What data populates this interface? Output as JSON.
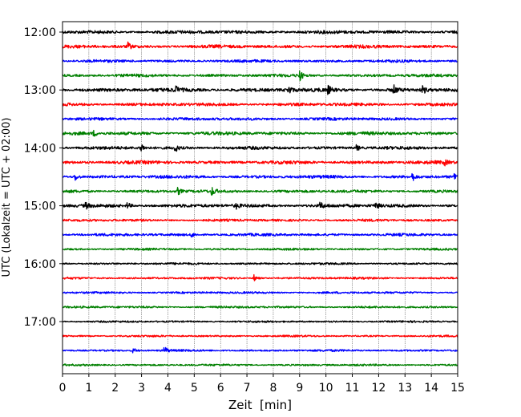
{
  "chart_data": {
    "type": "line",
    "subtype": "helicorder",
    "xlabel": "Zeit  [min]",
    "ylabel": "UTC (Lokalzeit = UTC + 02:00)",
    "xlim": [
      0,
      15
    ],
    "x_ticks": [
      0,
      1,
      2,
      3,
      4,
      5,
      6,
      7,
      8,
      9,
      10,
      11,
      12,
      13,
      14,
      15
    ],
    "y_tick_labels": [
      "12:00",
      "13:00",
      "14:00",
      "15:00",
      "16:00",
      "17:00"
    ],
    "x_grid": true,
    "trace_interval_min": 15,
    "traces_start": "12:00",
    "trace_count": 24,
    "colors_cycle": [
      "#000000",
      "#ff0000",
      "#0000ff",
      "#008000"
    ],
    "noise_amplitude_per_trace": [
      1.6,
      1.6,
      1.3,
      1.4,
      1.8,
      1.5,
      1.4,
      1.6,
      1.5,
      1.6,
      1.5,
      1.4,
      1.6,
      1.2,
      1.3,
      1.0,
      1.0,
      1.0,
      1.0,
      1.0,
      0.9,
      0.9,
      1.0,
      0.9
    ],
    "events": [
      {
        "trace": 1,
        "time": 2.5,
        "amp": 4
      },
      {
        "trace": 3,
        "time": 9.0,
        "amp": 7
      },
      {
        "trace": 4,
        "time": 4.3,
        "amp": 4
      },
      {
        "trace": 4,
        "time": 8.6,
        "amp": 5
      },
      {
        "trace": 4,
        "time": 10.1,
        "amp": 4
      },
      {
        "trace": 4,
        "time": 12.6,
        "amp": 5
      },
      {
        "trace": 4,
        "time": 13.7,
        "amp": 4
      },
      {
        "trace": 7,
        "time": 1.2,
        "amp": 3
      },
      {
        "trace": 8,
        "time": 3.0,
        "amp": 5
      },
      {
        "trace": 8,
        "time": 4.3,
        "amp": 4
      },
      {
        "trace": 8,
        "time": 11.2,
        "amp": 3
      },
      {
        "trace": 9,
        "time": 14.5,
        "amp": 3
      },
      {
        "trace": 10,
        "time": 0.5,
        "amp": 4
      },
      {
        "trace": 10,
        "time": 13.3,
        "amp": 4
      },
      {
        "trace": 10,
        "time": 14.9,
        "amp": 4
      },
      {
        "trace": 11,
        "time": 4.4,
        "amp": 4
      },
      {
        "trace": 11,
        "time": 5.7,
        "amp": 4
      },
      {
        "trace": 12,
        "time": 0.9,
        "amp": 3
      },
      {
        "trace": 12,
        "time": 2.5,
        "amp": 3
      },
      {
        "trace": 12,
        "time": 6.6,
        "amp": 3
      },
      {
        "trace": 12,
        "time": 9.8,
        "amp": 4
      },
      {
        "trace": 12,
        "time": 11.9,
        "amp": 4
      },
      {
        "trace": 14,
        "time": 4.9,
        "amp": 3
      },
      {
        "trace": 17,
        "time": 7.3,
        "amp": 4
      },
      {
        "trace": 22,
        "time": 2.7,
        "amp": 3
      },
      {
        "trace": 22,
        "time": 3.9,
        "amp": 4
      }
    ]
  }
}
